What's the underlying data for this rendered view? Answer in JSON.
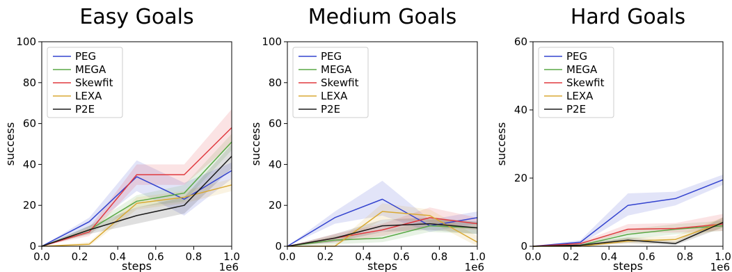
{
  "chart_data": [
    {
      "type": "line",
      "title": "Easy Goals",
      "xlabel": "steps",
      "ylabel": "success",
      "x_multiplier_label": "1e6",
      "xlim": [
        0.0,
        1.0
      ],
      "ylim": [
        0,
        100
      ],
      "xticks": [
        "0.0",
        "0.2",
        "0.4",
        "0.6",
        "0.8",
        "1.0"
      ],
      "yticks": [
        "0",
        "20",
        "40",
        "60",
        "80",
        "100"
      ],
      "grid": false,
      "legend": "top-left",
      "x": [
        0.0,
        0.25,
        0.5,
        0.75,
        1.0
      ],
      "series": [
        {
          "name": "PEG",
          "color": "#3343cf",
          "values": [
            0,
            12,
            34,
            23,
            37
          ],
          "band": [
            [
              0,
              0
            ],
            [
              9,
              14
            ],
            [
              27,
              42
            ],
            [
              15,
              31
            ],
            [
              33,
              41
            ]
          ]
        },
        {
          "name": "MEGA",
          "color": "#5aa846",
          "values": [
            0,
            8,
            22,
            26,
            51
          ],
          "band": [
            [
              0,
              0
            ],
            [
              6,
              10
            ],
            [
              19,
              25
            ],
            [
              22,
              30
            ],
            [
              47,
              55
            ]
          ]
        },
        {
          "name": "Skewfit",
          "color": "#e0393e",
          "values": [
            0,
            7,
            35,
            35,
            58
          ],
          "band": [
            [
              0,
              0
            ],
            [
              5,
              9
            ],
            [
              30,
              40
            ],
            [
              30,
              40
            ],
            [
              50,
              67
            ]
          ]
        },
        {
          "name": "LEXA",
          "color": "#d9a933",
          "values": [
            0,
            1,
            21,
            24,
            30
          ],
          "band": [
            [
              0,
              0
            ],
            [
              0,
              2
            ],
            [
              18,
              24
            ],
            [
              21,
              27
            ],
            [
              27,
              33
            ]
          ]
        },
        {
          "name": "P2E",
          "color": "#1a1a1a",
          "values": [
            0,
            8,
            15,
            20,
            44
          ],
          "band": [
            [
              0,
              0
            ],
            [
              6,
              10
            ],
            [
              11,
              19
            ],
            [
              16,
              24
            ],
            [
              38,
              50
            ]
          ]
        }
      ]
    },
    {
      "type": "line",
      "title": "Medium Goals",
      "xlabel": "steps",
      "ylabel": "success",
      "x_multiplier_label": "1e6",
      "xlim": [
        0.0,
        1.0
      ],
      "ylim": [
        0,
        100
      ],
      "xticks": [
        "0.0",
        "0.2",
        "0.4",
        "0.6",
        "0.8",
        "1.0"
      ],
      "yticks": [
        "0",
        "20",
        "40",
        "60",
        "80",
        "100"
      ],
      "grid": false,
      "legend": "top-left",
      "x": [
        0.0,
        0.25,
        0.5,
        0.75,
        1.0
      ],
      "series": [
        {
          "name": "PEG",
          "color": "#3343cf",
          "values": [
            0,
            14,
            23,
            10,
            14
          ],
          "band": [
            [
              0,
              0
            ],
            [
              11,
              17
            ],
            [
              15,
              32
            ],
            [
              7,
              13
            ],
            [
              11,
              17
            ]
          ]
        },
        {
          "name": "MEGA",
          "color": "#5aa846",
          "values": [
            0,
            3,
            4,
            10,
            9
          ],
          "band": [
            [
              0,
              0
            ],
            [
              1,
              5
            ],
            [
              2,
              7
            ],
            [
              7,
              13
            ],
            [
              6,
              12
            ]
          ]
        },
        {
          "name": "Skewfit",
          "color": "#e0393e",
          "values": [
            0,
            4,
            8,
            14,
            11
          ],
          "band": [
            [
              0,
              0
            ],
            [
              2,
              6
            ],
            [
              5,
              11
            ],
            [
              10,
              19
            ],
            [
              8,
              14
            ]
          ]
        },
        {
          "name": "LEXA",
          "color": "#d9a933",
          "values": [
            0,
            0,
            17,
            15,
            2
          ],
          "band": [
            [
              0,
              0
            ],
            [
              0,
              1
            ],
            [
              13,
              21
            ],
            [
              12,
              18
            ],
            [
              0,
              5
            ]
          ]
        },
        {
          "name": "P2E",
          "color": "#1a1a1a",
          "values": [
            0,
            4,
            10,
            11,
            9
          ],
          "band": [
            [
              0,
              0
            ],
            [
              2,
              6
            ],
            [
              7,
              13
            ],
            [
              8,
              14
            ],
            [
              6,
              12
            ]
          ]
        }
      ]
    },
    {
      "type": "line",
      "title": "Hard Goals",
      "xlabel": "steps",
      "ylabel": "success",
      "x_multiplier_label": "1e6",
      "xlim": [
        0.0,
        1.0
      ],
      "ylim": [
        0,
        60
      ],
      "xticks": [
        "0.0",
        "0.2",
        "0.4",
        "0.6",
        "0.8",
        "1.0"
      ],
      "yticks": [
        "0",
        "20",
        "40",
        "60"
      ],
      "grid": false,
      "legend": "top-left",
      "x": [
        0.0,
        0.25,
        0.5,
        0.75,
        1.0
      ],
      "series": [
        {
          "name": "PEG",
          "color": "#3343cf",
          "values": [
            0,
            1.2,
            12,
            14,
            19.5
          ],
          "band": [
            [
              0,
              0
            ],
            [
              0.6,
              1.8
            ],
            [
              9,
              15.5
            ],
            [
              12,
              16
            ],
            [
              18,
              21
            ]
          ]
        },
        {
          "name": "MEGA",
          "color": "#5aa846",
          "values": [
            0,
            0.3,
            3.5,
            5,
            6
          ],
          "band": [
            [
              0,
              0
            ],
            [
              0,
              0.8
            ],
            [
              2,
              5
            ],
            [
              3.5,
              6.5
            ],
            [
              4.5,
              7.5
            ]
          ]
        },
        {
          "name": "Skewfit",
          "color": "#e0393e",
          "values": [
            0,
            0.8,
            5,
            5.2,
            6.5
          ],
          "band": [
            [
              0,
              0
            ],
            [
              0.3,
              1.3
            ],
            [
              4,
              6.5
            ],
            [
              4,
              6.8
            ],
            [
              4.5,
              9.5
            ]
          ]
        },
        {
          "name": "LEXA",
          "color": "#d9a933",
          "values": [
            0,
            0,
            1.5,
            2,
            7
          ],
          "band": [
            [
              0,
              0
            ],
            [
              0,
              0.4
            ],
            [
              0.8,
              2.5
            ],
            [
              1,
              3
            ],
            [
              5.5,
              8.5
            ]
          ]
        },
        {
          "name": "P2E",
          "color": "#1a1a1a",
          "values": [
            0,
            0.3,
            1.8,
            0.8,
            7
          ],
          "band": [
            [
              0,
              0
            ],
            [
              0,
              0.8
            ],
            [
              1,
              2.6
            ],
            [
              0.3,
              1.4
            ],
            [
              5.5,
              8.5
            ]
          ]
        }
      ]
    }
  ]
}
